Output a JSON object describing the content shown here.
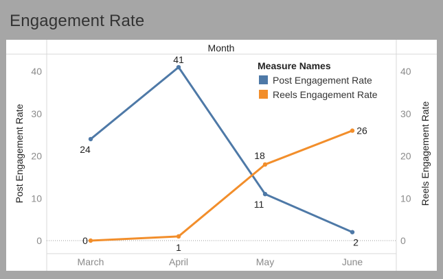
{
  "title": "Engagement Rate",
  "chart_data": {
    "type": "line",
    "column_header": "Month",
    "categories": [
      "March",
      "April",
      "May",
      "June"
    ],
    "series": [
      {
        "name": "Post Engagement Rate",
        "values": [
          24,
          41,
          11,
          2
        ],
        "color": "#4e79a7",
        "axis": "left"
      },
      {
        "name": "Reels Engagement Rate",
        "values": [
          0,
          1,
          18,
          26
        ],
        "color": "#f28e2b",
        "axis": "right"
      }
    ],
    "ylabel_left": "Post Engagement Rate",
    "ylabel_right": "Reels Engagement Rate",
    "ylim": [
      0,
      43
    ],
    "yticks": [
      0,
      10,
      20,
      30,
      40
    ],
    "legend": {
      "title": "Measure Names",
      "position": "top-right"
    },
    "grid": false
  }
}
